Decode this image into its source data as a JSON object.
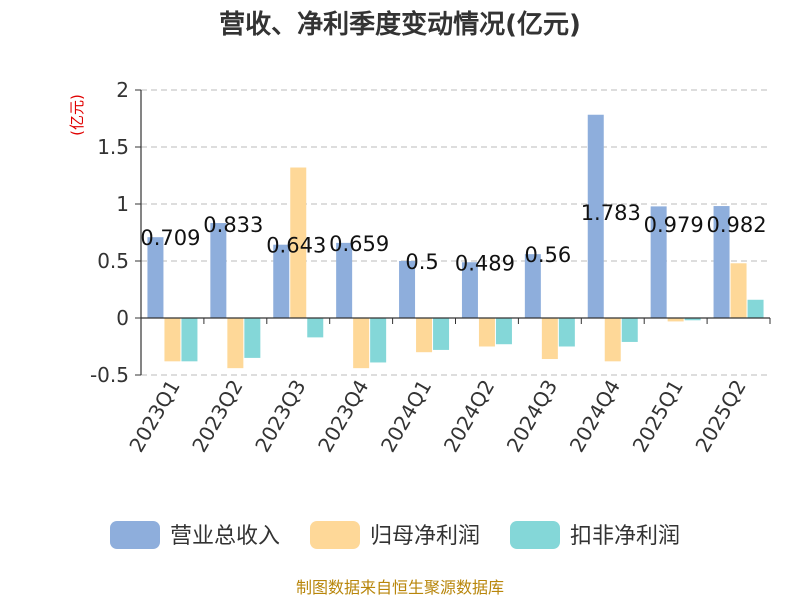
{
  "chart_data": {
    "type": "bar",
    "title": "营收、净利季度变动情况(亿元)",
    "unit_label": "(亿元)",
    "categories": [
      "2023Q1",
      "2023Q2",
      "2023Q3",
      "2023Q4",
      "2024Q1",
      "2024Q2",
      "2024Q3",
      "2024Q4",
      "2025Q1",
      "2025Q2"
    ],
    "series": [
      {
        "name": "营业总收入",
        "color": "#8eaedc",
        "values": [
          0.709,
          0.833,
          0.643,
          0.659,
          0.5,
          0.489,
          0.56,
          1.783,
          0.979,
          0.982
        ]
      },
      {
        "name": "归母净利润",
        "color": "#fed898",
        "values": [
          -0.38,
          -0.44,
          1.32,
          -0.44,
          -0.3,
          -0.25,
          -0.36,
          -0.38,
          -0.03,
          0.48
        ]
      },
      {
        "name": "扣非净利润",
        "color": "#84d7d8",
        "values": [
          -0.38,
          -0.35,
          -0.17,
          -0.39,
          -0.28,
          -0.23,
          -0.25,
          -0.21,
          -0.02,
          0.16
        ]
      }
    ],
    "data_labels": [
      "0.709",
      "0.833",
      "0.643",
      "0.659",
      "0.5",
      "0.489",
      "0.56",
      "1.783",
      "0.979",
      "0.982"
    ],
    "yticks": [
      "2",
      "1.5",
      "1",
      "0.5",
      "0",
      "-0.5"
    ],
    "ylim": [
      -0.5,
      2
    ],
    "grid": true,
    "legend_position": "bottom"
  },
  "footer": {
    "source": "制图数据来自恒生聚源数据库"
  }
}
